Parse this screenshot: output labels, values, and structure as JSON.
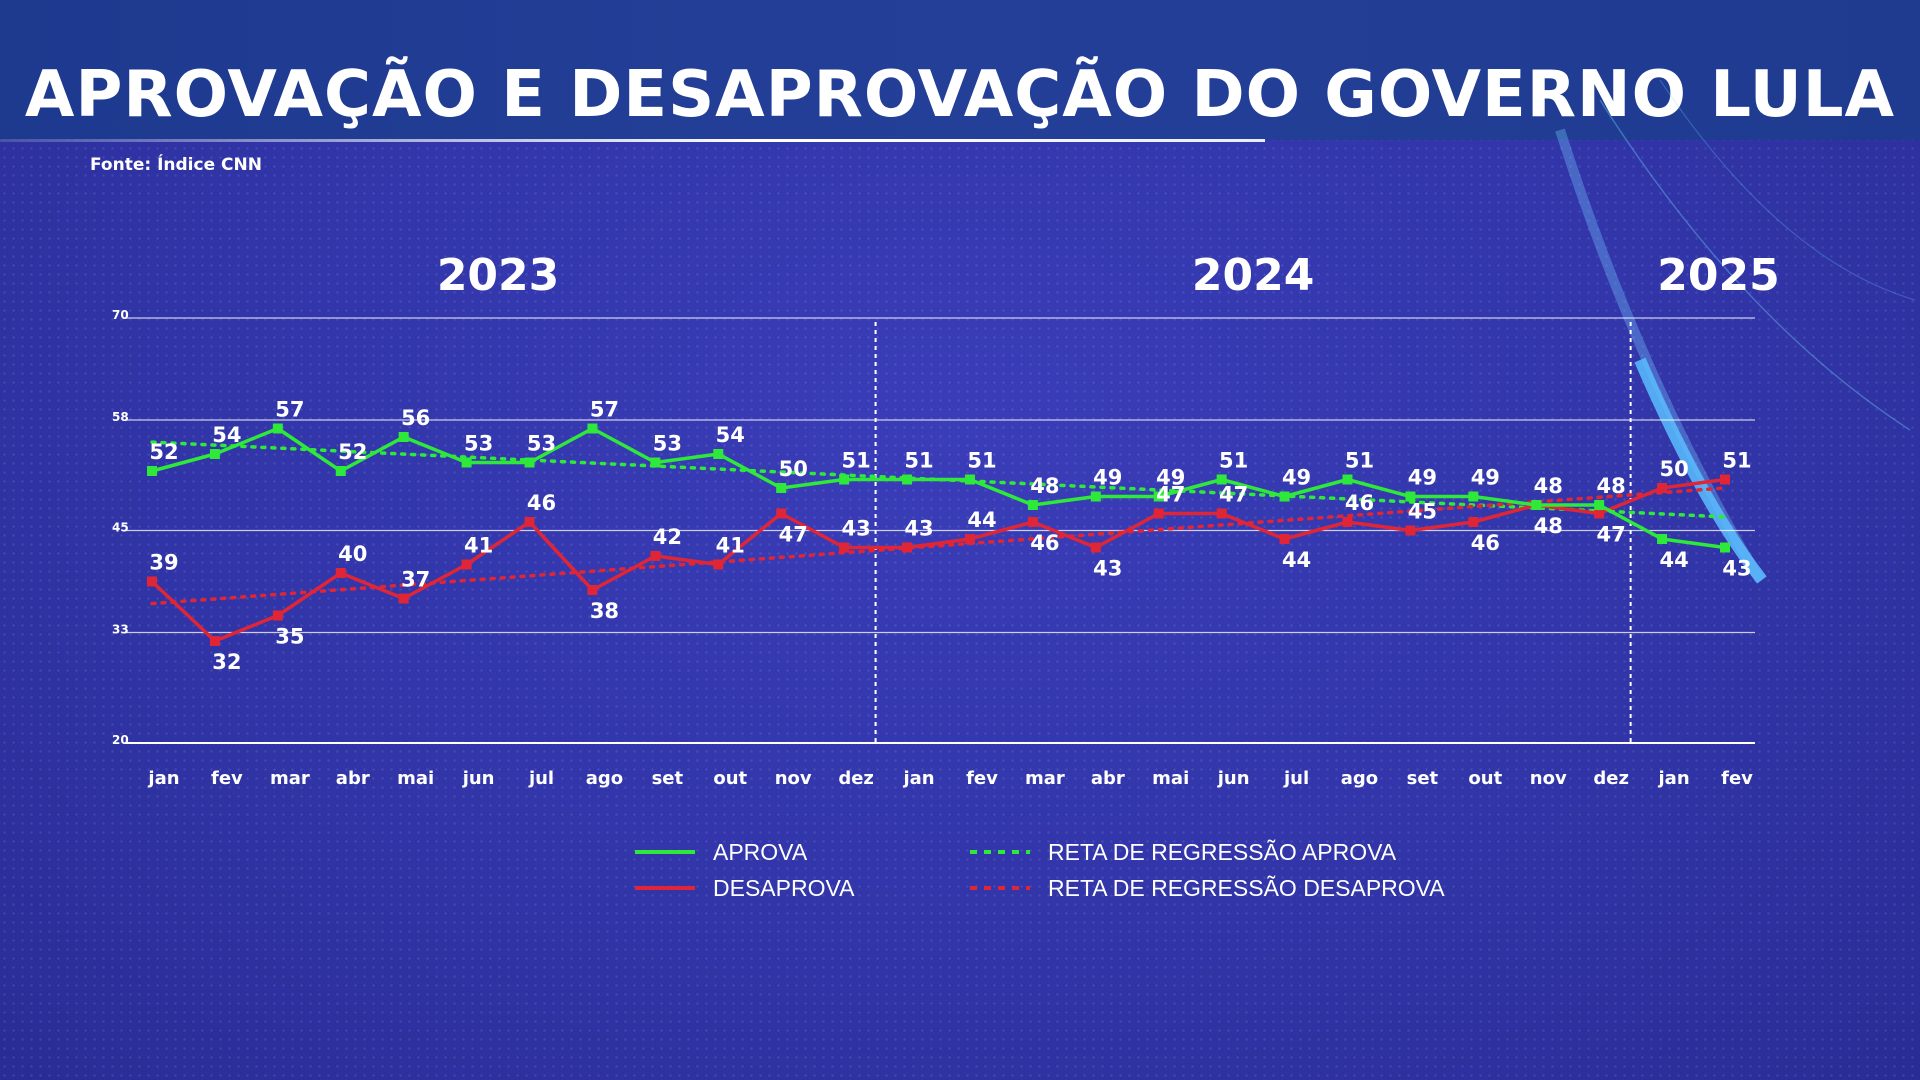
{
  "header": {
    "title": "APROVAÇÃO E DESAPROVAÇÃO DO GOVERNO LULA",
    "source": "Fonte: Índice CNN"
  },
  "colors": {
    "aprova": "#2ee83a",
    "desaprova": "#e02636",
    "grid": "#ffffff"
  },
  "chart_data": {
    "type": "line",
    "title": "APROVAÇÃO E DESAPROVAÇÃO DO GOVERNO LULA",
    "years": [
      {
        "label": "2023",
        "start": 0,
        "end": 11
      },
      {
        "label": "2024",
        "start": 12,
        "end": 23
      },
      {
        "label": "2025",
        "start": 24,
        "end": 25
      }
    ],
    "categories": [
      "jan",
      "fev",
      "mar",
      "abr",
      "mai",
      "jun",
      "jul",
      "ago",
      "set",
      "out",
      "nov",
      "dez",
      "jan",
      "fev",
      "mar",
      "abr",
      "mai",
      "jun",
      "jul",
      "ago",
      "set",
      "out",
      "nov",
      "dez",
      "jan",
      "fev"
    ],
    "yticks": [
      20,
      33,
      45,
      58,
      70
    ],
    "ylim": [
      20,
      70
    ],
    "grid": true,
    "year_dividers_after": [
      11,
      23
    ],
    "series": [
      {
        "name": "APROVA",
        "values": [
          52,
          54,
          57,
          52,
          56,
          53,
          53,
          57,
          53,
          54,
          50,
          51,
          51,
          51,
          48,
          49,
          49,
          51,
          49,
          51,
          49,
          49,
          48,
          48,
          44,
          43
        ],
        "label_pos": [
          "a",
          "a",
          "a",
          "a",
          "a",
          "a",
          "a",
          "a",
          "a",
          "a",
          "a",
          "a",
          "a",
          "a",
          "a",
          "a",
          "a",
          "a",
          "a",
          "a",
          "a",
          "a",
          "a",
          "a",
          "b",
          "b"
        ]
      },
      {
        "name": "DESAPROVA",
        "values": [
          39,
          32,
          35,
          40,
          37,
          41,
          46,
          38,
          42,
          41,
          47,
          43,
          43,
          44,
          46,
          43,
          47,
          47,
          44,
          46,
          45,
          46,
          48,
          47,
          50,
          51
        ],
        "label_pos": [
          "a",
          "b",
          "b",
          "a",
          "a",
          "a",
          "a",
          "b",
          "a",
          "a",
          "b",
          "a",
          "a",
          "a",
          "b",
          "b",
          "a",
          "a",
          "b",
          "a",
          "a",
          "b",
          "b",
          "b",
          "a",
          "a"
        ]
      }
    ],
    "regression": [
      {
        "name": "RETA DE REGRESSÃO APROVA",
        "start": 55.4,
        "end": 46.6
      },
      {
        "name": "RETA DE REGRESSÃO DESAPROVA",
        "start": 36.4,
        "end": 50.0
      }
    ],
    "legend": {
      "position": "bottom",
      "items": [
        {
          "label": "APROVA",
          "style": "solid",
          "color_key": "aprova"
        },
        {
          "label": "DESAPROVA",
          "style": "solid",
          "color_key": "desaprova"
        },
        {
          "label": "RETA DE REGRESSÃO APROVA",
          "style": "dotted",
          "color_key": "aprova"
        },
        {
          "label": "RETA DE REGRESSÃO DESAPROVA",
          "style": "dotted",
          "color_key": "desaprova"
        }
      ]
    }
  }
}
